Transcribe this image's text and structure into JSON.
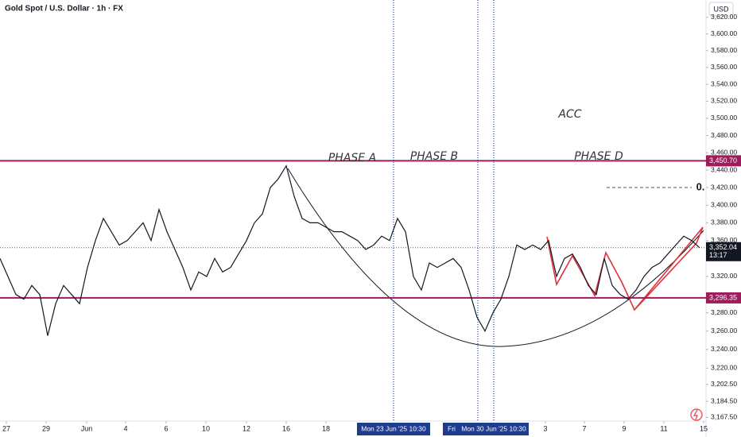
{
  "chart_data": {
    "type": "line",
    "title": "Gold Spot / U.S. Dollar · 1h · FX",
    "currency": "USD",
    "yscale": "log",
    "grid": false,
    "ylim": [
      3163.5,
      3641
    ],
    "xlim": [
      0,
      88.5
    ],
    "yticks": [
      {
        "value": 3620,
        "label": "3,620.00"
      },
      {
        "value": 3600,
        "label": "3,600.00"
      },
      {
        "value": 3580,
        "label": "3,580.00"
      },
      {
        "value": 3560,
        "label": "3,560.00"
      },
      {
        "value": 3540,
        "label": "3,540.00"
      },
      {
        "value": 3520,
        "label": "3,520.00"
      },
      {
        "value": 3500,
        "label": "3,500.00"
      },
      {
        "value": 3480,
        "label": "3,480.00"
      },
      {
        "value": 3460,
        "label": "3,460.00"
      },
      {
        "value": 3440,
        "label": "3,440.00"
      },
      {
        "value": 3420,
        "label": "3,420.00"
      },
      {
        "value": 3400,
        "label": "3,400.00"
      },
      {
        "value": 3380,
        "label": "3,380.00"
      },
      {
        "value": 3360,
        "label": "3,360.00"
      },
      {
        "value": 3320,
        "label": "3,320.00"
      },
      {
        "value": 3280,
        "label": "3,280.00"
      },
      {
        "value": 3260,
        "label": "3,260.00"
      },
      {
        "value": 3240,
        "label": "3,240.00"
      },
      {
        "value": 3220,
        "label": "3,220.00"
      },
      {
        "value": 3202.5,
        "label": "3,202.50"
      },
      {
        "value": 3184.5,
        "label": "3,184.50"
      },
      {
        "value": 3167.5,
        "label": "3,167.50"
      }
    ],
    "xticks": [
      {
        "value": 0.8,
        "label": "27"
      },
      {
        "value": 5.8,
        "label": "29"
      },
      {
        "value": 10.9,
        "label": "Jun"
      },
      {
        "value": 15.8,
        "label": "4"
      },
      {
        "value": 20.9,
        "label": "6"
      },
      {
        "value": 25.9,
        "label": "10"
      },
      {
        "value": 31,
        "label": "12"
      },
      {
        "value": 36,
        "label": "16"
      },
      {
        "value": 41,
        "label": "18"
      },
      {
        "value": 68.6,
        "label": "3"
      },
      {
        "value": 73.5,
        "label": "7"
      },
      {
        "value": 78.5,
        "label": "9"
      },
      {
        "value": 83.5,
        "label": "11"
      },
      {
        "value": 88.5,
        "label": "15"
      }
    ],
    "markers": [
      {
        "value": 49.5,
        "label": "Mon 23 Jun '25  10:30"
      },
      {
        "value": 60.1,
        "label": "Fri"
      },
      {
        "value": 62.1,
        "label": "Mon 30 Jun '25  10:30"
      }
    ],
    "levels": [
      {
        "value": 3450.7,
        "label": "3,450.70",
        "color": "#9c1c5c"
      },
      {
        "value": 3296.35,
        "label": "3,296.35",
        "color": "#9c1c5c"
      }
    ],
    "last_price": {
      "value": 3352.04,
      "label": "3,352.04",
      "countdown": "13:17"
    },
    "annotations": [
      "PHASE A",
      "PHASE B",
      "PHASE D",
      "ACC",
      "0."
    ],
    "series": [
      {
        "name": "XAUUSD",
        "color": "#131722",
        "values": [
          3340,
          3320,
          3300,
          3295,
          3310,
          3300,
          3255,
          3290,
          3310,
          3300,
          3290,
          3330,
          3360,
          3385,
          3370,
          3355,
          3360,
          3370,
          3380,
          3360,
          3395,
          3370,
          3350,
          3330,
          3305,
          3325,
          3320,
          3340,
          3325,
          3330,
          3345,
          3360,
          3380,
          3390,
          3420,
          3430,
          3445,
          3410,
          3385,
          3380,
          3380,
          3375,
          3370,
          3370,
          3365,
          3360,
          3350,
          3355,
          3365,
          3360,
          3385,
          3370,
          3320,
          3305,
          3335,
          3330,
          3335,
          3340,
          3330,
          3305,
          3275,
          3260,
          3280,
          3295,
          3320,
          3355,
          3350,
          3355,
          3350,
          3360,
          3320,
          3340,
          3345,
          3330,
          3310,
          3300,
          3340,
          3310,
          3300,
          3295,
          3305,
          3320,
          3330,
          3335,
          3345,
          3355,
          3365,
          3360,
          3352
        ]
      }
    ]
  }
}
